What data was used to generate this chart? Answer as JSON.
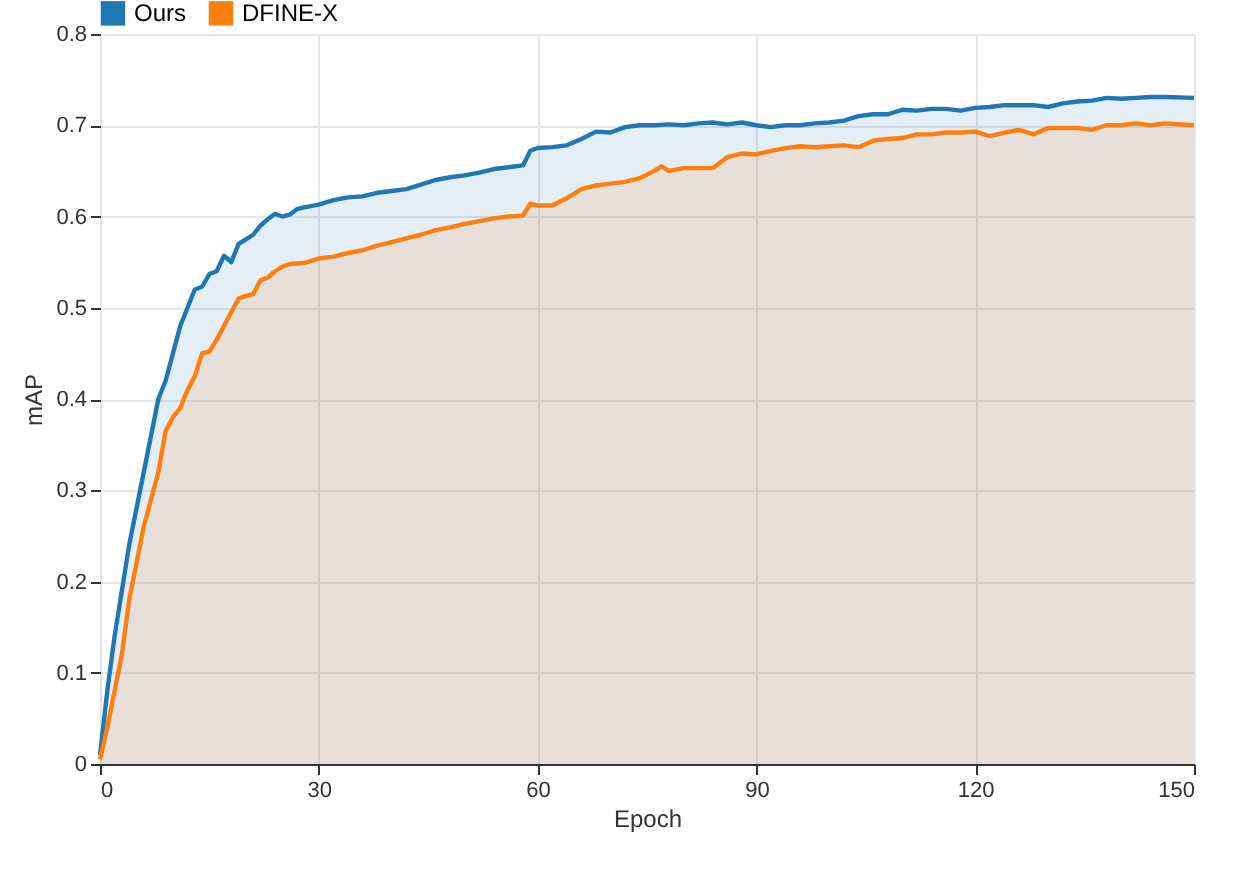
{
  "chart_data": {
    "type": "area",
    "xlabel": "Epoch",
    "ylabel": "mAP",
    "xlim": [
      0,
      150
    ],
    "xticks": [
      0,
      30,
      60,
      90,
      120,
      150
    ],
    "ylim": [
      0,
      0.8
    ],
    "yticks": [
      0,
      0.1,
      0.2,
      0.3,
      0.4,
      0.5,
      0.6,
      0.7,
      0.8
    ],
    "grid": true,
    "legend": "top left",
    "marker": "none",
    "line_style": "solid",
    "series": [
      {
        "name": "Ours",
        "color": "#1f77b4",
        "x": [
          0,
          1,
          2,
          3,
          4,
          5,
          6,
          7,
          8,
          9,
          10,
          11,
          12,
          13,
          14,
          15,
          16,
          17,
          18,
          19,
          20,
          21,
          22,
          23,
          24,
          25,
          26,
          27,
          28,
          30,
          32,
          34,
          36,
          38,
          40,
          42,
          44,
          46,
          48,
          50,
          52,
          54,
          56,
          58,
          59,
          60,
          62,
          64,
          66,
          68,
          70,
          72,
          74,
          76,
          78,
          80,
          82,
          84,
          86,
          88,
          90,
          92,
          94,
          96,
          98,
          100,
          102,
          104,
          106,
          108,
          110,
          112,
          114,
          116,
          118,
          120,
          122,
          124,
          126,
          128,
          130,
          132,
          134,
          136,
          138,
          140,
          142,
          144,
          146,
          150
        ],
        "values": [
          0.01,
          0.08,
          0.14,
          0.19,
          0.24,
          0.28,
          0.32,
          0.36,
          0.4,
          0.42,
          0.45,
          0.48,
          0.5,
          0.52,
          0.523,
          0.537,
          0.54,
          0.557,
          0.55,
          0.57,
          0.575,
          0.58,
          0.59,
          0.597,
          0.603,
          0.6,
          0.602,
          0.608,
          0.61,
          0.613,
          0.618,
          0.621,
          0.622,
          0.626,
          0.628,
          0.63,
          0.635,
          0.64,
          0.643,
          0.645,
          0.648,
          0.652,
          0.654,
          0.656,
          0.672,
          0.675,
          0.676,
          0.678,
          0.685,
          0.693,
          0.692,
          0.698,
          0.7,
          0.7,
          0.701,
          0.7,
          0.702,
          0.703,
          0.701,
          0.703,
          0.7,
          0.698,
          0.7,
          0.7,
          0.702,
          0.703,
          0.705,
          0.71,
          0.712,
          0.712,
          0.717,
          0.716,
          0.718,
          0.718,
          0.716,
          0.719,
          0.72,
          0.722,
          0.722,
          0.722,
          0.72,
          0.724,
          0.726,
          0.727,
          0.73,
          0.729,
          0.73,
          0.731,
          0.731,
          0.73
        ]
      },
      {
        "name": "DFINE-X",
        "color": "#ff7f0e",
        "x": [
          0,
          1,
          2,
          3,
          4,
          5,
          6,
          7,
          8,
          9,
          10,
          11,
          12,
          13,
          14,
          15,
          16,
          17,
          18,
          19,
          20,
          21,
          22,
          23,
          24,
          25,
          26,
          28,
          30,
          32,
          34,
          36,
          38,
          40,
          42,
          44,
          46,
          48,
          50,
          52,
          54,
          56,
          58,
          59,
          60,
          62,
          64,
          66,
          68,
          70,
          72,
          74,
          76,
          77,
          78,
          80,
          82,
          84,
          86,
          88,
          90,
          92,
          94,
          96,
          98,
          100,
          102,
          104,
          106,
          108,
          110,
          112,
          114,
          116,
          118,
          120,
          122,
          124,
          126,
          128,
          130,
          132,
          134,
          136,
          138,
          140,
          142,
          144,
          146,
          150
        ],
        "values": [
          0.005,
          0.04,
          0.08,
          0.12,
          0.18,
          0.22,
          0.26,
          0.29,
          0.32,
          0.365,
          0.38,
          0.39,
          0.41,
          0.425,
          0.45,
          0.452,
          0.465,
          0.48,
          0.495,
          0.51,
          0.513,
          0.515,
          0.53,
          0.533,
          0.54,
          0.545,
          0.548,
          0.549,
          0.554,
          0.556,
          0.56,
          0.563,
          0.568,
          0.572,
          0.576,
          0.58,
          0.585,
          0.588,
          0.592,
          0.595,
          0.598,
          0.6,
          0.601,
          0.614,
          0.612,
          0.612,
          0.62,
          0.63,
          0.634,
          0.636,
          0.638,
          0.642,
          0.65,
          0.655,
          0.65,
          0.653,
          0.653,
          0.653,
          0.665,
          0.669,
          0.668,
          0.672,
          0.675,
          0.677,
          0.676,
          0.677,
          0.678,
          0.676,
          0.683,
          0.685,
          0.686,
          0.69,
          0.69,
          0.692,
          0.692,
          0.693,
          0.688,
          0.692,
          0.695,
          0.69,
          0.697,
          0.697,
          0.697,
          0.695,
          0.7,
          0.7,
          0.702,
          0.7,
          0.702,
          0.7
        ]
      }
    ]
  }
}
